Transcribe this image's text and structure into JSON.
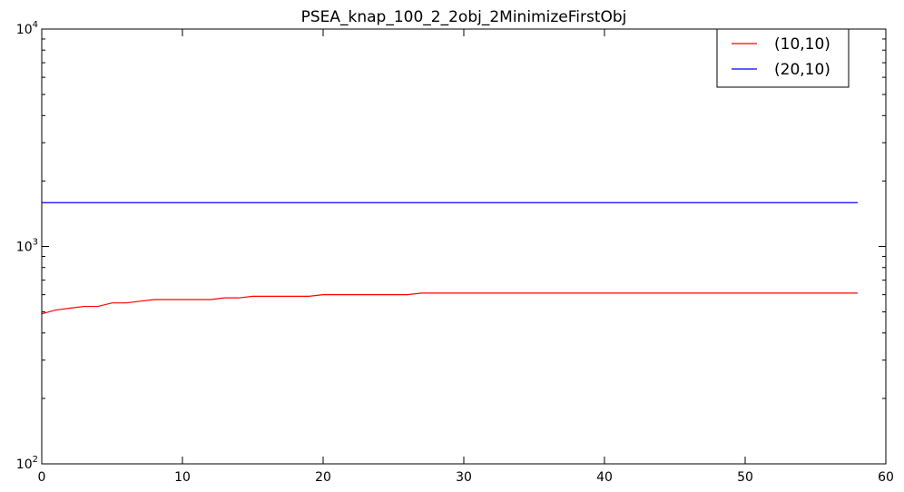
{
  "chart_data": {
    "type": "line",
    "title": "PSEA_knap_100_2_2obj_2MinimizeFirstObj",
    "xlabel": "",
    "ylabel": "",
    "xlim": [
      0,
      60
    ],
    "ylim": [
      100,
      10000
    ],
    "yscale": "log",
    "x_ticks": [
      0,
      10,
      20,
      30,
      40,
      50,
      60
    ],
    "x_tick_labels": [
      "0",
      "10",
      "20",
      "30",
      "40",
      "50",
      "60"
    ],
    "y_ticks": [
      {
        "value": 100,
        "base": "10",
        "exp": "2"
      },
      {
        "value": 1000,
        "base": "10",
        "exp": "3"
      },
      {
        "value": 10000,
        "base": "10",
        "exp": "4"
      }
    ],
    "grid": false,
    "legend_position": "top-right",
    "series": [
      {
        "name": "(10,10)",
        "color": "#ff0000",
        "x": [
          0,
          1,
          2,
          3,
          4,
          5,
          6,
          7,
          8,
          9,
          10,
          11,
          12,
          13,
          14,
          15,
          16,
          17,
          18,
          19,
          20,
          21,
          22,
          23,
          24,
          25,
          26,
          27,
          28,
          29,
          30,
          31,
          32,
          33,
          34,
          35,
          36,
          37,
          38,
          39,
          40,
          41,
          42,
          43,
          44,
          45,
          46,
          47,
          48,
          49,
          50,
          51,
          52,
          53,
          54,
          55,
          56,
          57,
          58
        ],
        "y": [
          490,
          510,
          520,
          530,
          530,
          550,
          550,
          560,
          570,
          570,
          570,
          570,
          570,
          580,
          580,
          590,
          590,
          590,
          590,
          590,
          600,
          600,
          600,
          600,
          600,
          600,
          600,
          610,
          610,
          610,
          610,
          610,
          610,
          610,
          610,
          610,
          610,
          610,
          610,
          610,
          610,
          610,
          610,
          610,
          610,
          610,
          610,
          610,
          610,
          610,
          610,
          610,
          610,
          610,
          610,
          610,
          610,
          610,
          610
        ]
      },
      {
        "name": "(20,10)",
        "color": "#0000ff",
        "x": [
          0,
          58
        ],
        "y": [
          1590,
          1590
        ]
      }
    ]
  }
}
